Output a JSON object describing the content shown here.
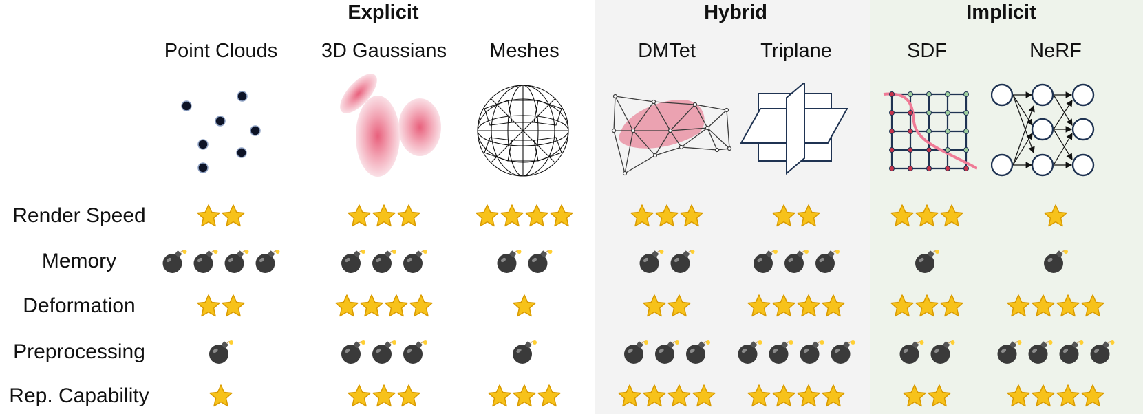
{
  "groups": [
    {
      "key": "explicit",
      "title": "Explicit"
    },
    {
      "key": "hybrid",
      "title": "Hybrid"
    },
    {
      "key": "implicit",
      "title": "Implicit"
    }
  ],
  "columns": [
    {
      "key": "point_clouds",
      "group": "explicit",
      "label": "Point Clouds"
    },
    {
      "key": "gaussians",
      "group": "explicit",
      "label": "3D Gaussians"
    },
    {
      "key": "meshes",
      "group": "explicit",
      "label": "Meshes"
    },
    {
      "key": "dmtet",
      "group": "hybrid",
      "label": "DMTet"
    },
    {
      "key": "triplane",
      "group": "hybrid",
      "label": "Triplane"
    },
    {
      "key": "sdf",
      "group": "implicit",
      "label": "SDF"
    },
    {
      "key": "nerf",
      "group": "implicit",
      "label": "NeRF"
    }
  ],
  "rows": [
    {
      "key": "render_speed",
      "label": "Render Speed",
      "icon": "star-icon",
      "ratings": [
        2,
        3,
        4,
        3,
        2,
        3,
        1
      ]
    },
    {
      "key": "memory",
      "label": "Memory",
      "icon": "bomb-icon",
      "ratings": [
        4,
        3,
        2,
        2,
        3,
        1,
        1
      ]
    },
    {
      "key": "deformation",
      "label": "Deformation",
      "icon": "star-icon",
      "ratings": [
        2,
        4,
        1,
        2,
        4,
        3,
        4
      ]
    },
    {
      "key": "preprocessing",
      "label": "Preprocessing",
      "icon": "bomb-icon",
      "ratings": [
        1,
        3,
        1,
        3,
        4,
        2,
        4
      ]
    },
    {
      "key": "rep_capability",
      "label": "Rep. Capability",
      "icon": "star-icon",
      "ratings": [
        1,
        3,
        3,
        4,
        4,
        2,
        4
      ]
    }
  ],
  "colors": {
    "hybrid_band": "#f3f3f3",
    "implicit_band": "#eef3eb",
    "star": "#f7c21a",
    "bomb": "#3a3a3a",
    "gaussian": "#e8607c",
    "line": "#1f3352",
    "sdf_curve": "#ef7b96",
    "sdf_inside": "#c8334b",
    "sdf_outside": "#9fcf9f"
  }
}
